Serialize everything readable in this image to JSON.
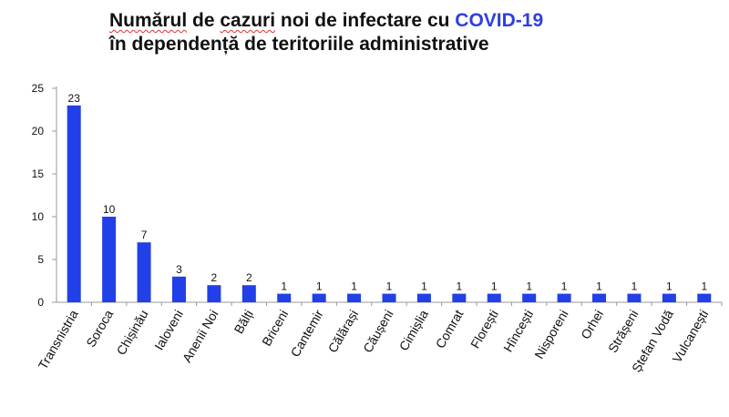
{
  "title": {
    "line1_word1": "Numărul",
    "line1_mid": " de ",
    "line1_word2": "cazuri",
    "line1_rest": " noi de infectare cu ",
    "line1_accent": "COVID-19",
    "line2": "în dependență de teritoriile administrative"
  },
  "colors": {
    "bar": "#2140e8",
    "accent": "#2f3fe0",
    "axis": "#999999"
  },
  "chart_data": {
    "type": "bar",
    "categories": [
      "Transnistria",
      "Soroca",
      "Chișinău",
      "Ialoveni",
      "Anenii Noi",
      "Bălți",
      "Briceni",
      "Cantemir",
      "Călărași",
      "Căușeni",
      "Cimișlia",
      "Comrat",
      "Florești",
      "Hîncești",
      "Nisporeni",
      "Orhei",
      "Strășeni",
      "Ștefan Vodă",
      "Vulcanești"
    ],
    "values": [
      23,
      10,
      7,
      3,
      2,
      2,
      1,
      1,
      1,
      1,
      1,
      1,
      1,
      1,
      1,
      1,
      1,
      1,
      1
    ],
    "ylim": [
      0,
      25
    ],
    "yticks": [
      0,
      5,
      10,
      15,
      20,
      25
    ],
    "grid": false,
    "data_labels": true
  }
}
